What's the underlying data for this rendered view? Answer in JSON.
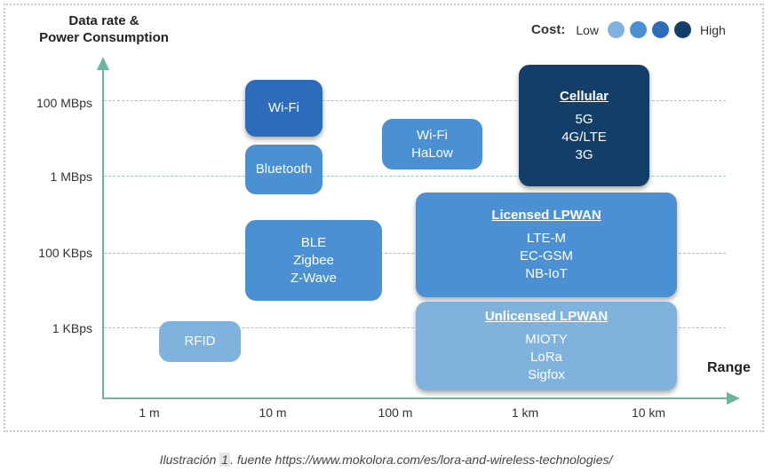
{
  "y_axis": {
    "label_line1": "Data rate &",
    "label_line2": "Power Consumption",
    "ticks": [
      "100 MBps",
      "1 MBps",
      "100 KBps",
      "1 KBps"
    ]
  },
  "x_axis": {
    "label": "Range",
    "ticks": [
      "1 m",
      "10 m",
      "100 m",
      "1 km",
      "10 km"
    ]
  },
  "legend": {
    "label": "Cost:",
    "low": "Low",
    "high": "High",
    "colors": [
      "#7fb2dd",
      "#4a90d2",
      "#2c6cbb",
      "#143e6a"
    ]
  },
  "boxes": {
    "wifi": "Wi-Fi",
    "bluetooth": "Bluetooth",
    "wifi_halow_1": "Wi-Fi",
    "wifi_halow_2": "HaLow",
    "ble_1": "BLE",
    "ble_2": "Zigbee",
    "ble_3": "Z-Wave",
    "rfid": "RFID",
    "cellular": {
      "title": "Cellular",
      "items": [
        "5G",
        "4G/LTE",
        "3G"
      ]
    },
    "licensed": {
      "title": "Licensed LPWAN",
      "items": [
        "LTE-M",
        "EC-GSM",
        "NB-IoT"
      ]
    },
    "unlicensed": {
      "title": "Unlicensed LPWAN",
      "items": [
        "MIOTY",
        "LoRa",
        "Sigfox"
      ]
    }
  },
  "caption": {
    "prefix": "Ilustración ",
    "number": "1",
    "suffix": ". fuente https://www.mokolora.com/es/lora-and-wireless-technologies/"
  }
}
